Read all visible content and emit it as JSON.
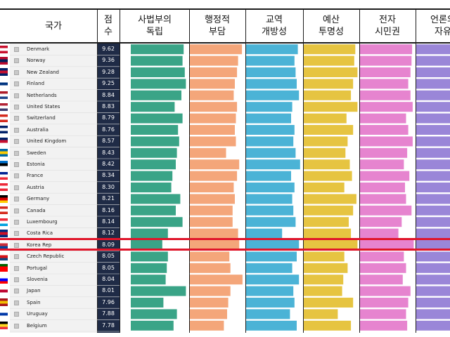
{
  "chart_data": {
    "type": "bar",
    "columns": [
      {
        "key": "country",
        "label": "국가"
      },
      {
        "key": "score",
        "label": "점\n수"
      },
      {
        "key": "judicial",
        "label": "사법부의\n독립",
        "color": "#3aa487"
      },
      {
        "key": "administrative",
        "label": "행정적\n부담",
        "color": "#f4a67a"
      },
      {
        "key": "trade",
        "label": "교역\n개방성",
        "color": "#4bb3d6"
      },
      {
        "key": "budget",
        "label": "예산\n투명성",
        "color": "#e6c441"
      },
      {
        "key": "eparticipation",
        "label": "전자\n시민권",
        "color": "#e684cf"
      },
      {
        "key": "press",
        "label": "언론의\n자유",
        "color": "#9a86d8"
      }
    ],
    "rows": [
      {
        "country": "Denmark",
        "score": "9.62",
        "judicial": 0.94,
        "administrative": 0.95,
        "trade": 0.92,
        "budget": 0.94,
        "eparticipation": 0.95,
        "press": 0.98
      },
      {
        "country": "Norway",
        "score": "9.36",
        "judicial": 0.92,
        "administrative": 0.88,
        "trade": 0.86,
        "budget": 0.92,
        "eparticipation": 0.94,
        "press": 0.99
      },
      {
        "country": "New Zealand",
        "score": "9.28",
        "judicial": 0.96,
        "administrative": 0.86,
        "trade": 0.88,
        "budget": 0.98,
        "eparticipation": 0.92,
        "press": 0.95
      },
      {
        "country": "Finland",
        "score": "9.25",
        "judicial": 0.98,
        "administrative": 0.82,
        "trade": 0.9,
        "budget": 0.9,
        "eparticipation": 0.88,
        "press": 0.98
      },
      {
        "country": "Netherlands",
        "score": "8.84",
        "judicial": 0.9,
        "administrative": 0.8,
        "trade": 0.94,
        "budget": 0.86,
        "eparticipation": 0.92,
        "press": 0.97
      },
      {
        "country": "United States",
        "score": "8.83",
        "judicial": 0.78,
        "administrative": 0.86,
        "trade": 0.82,
        "budget": 0.98,
        "eparticipation": 0.96,
        "press": 0.86
      },
      {
        "country": "Switzerland",
        "score": "8.79",
        "judicial": 0.92,
        "administrative": 0.84,
        "trade": 0.8,
        "budget": 0.78,
        "eparticipation": 0.84,
        "press": 0.94
      },
      {
        "country": "Australia",
        "score": "8.76",
        "judicial": 0.84,
        "administrative": 0.82,
        "trade": 0.86,
        "budget": 0.9,
        "eparticipation": 0.88,
        "press": 0.9
      },
      {
        "country": "United Kingdom",
        "score": "8.57",
        "judicial": 0.86,
        "administrative": 0.84,
        "trade": 0.84,
        "budget": 0.8,
        "eparticipation": 0.96,
        "press": 0.88
      },
      {
        "country": "Sweden",
        "score": "8.43",
        "judicial": 0.82,
        "administrative": 0.66,
        "trade": 0.88,
        "budget": 0.76,
        "eparticipation": 0.86,
        "press": 1.0
      },
      {
        "country": "Estonia",
        "score": "8.42",
        "judicial": 0.8,
        "administrative": 0.9,
        "trade": 0.96,
        "budget": 0.84,
        "eparticipation": 0.8,
        "press": 0.93
      },
      {
        "country": "France",
        "score": "8.34",
        "judicial": 0.74,
        "administrative": 0.86,
        "trade": 0.8,
        "budget": 0.88,
        "eparticipation": 0.9,
        "press": 0.86
      },
      {
        "country": "Austria",
        "score": "8.30",
        "judicial": 0.72,
        "administrative": 0.8,
        "trade": 0.86,
        "budget": 0.74,
        "eparticipation": 0.82,
        "press": 0.9
      },
      {
        "country": "Germany",
        "score": "8.21",
        "judicial": 0.88,
        "administrative": 0.82,
        "trade": 0.82,
        "budget": 0.96,
        "eparticipation": 0.84,
        "press": 0.92
      },
      {
        "country": "Canada",
        "score": "8.16",
        "judicial": 0.8,
        "administrative": 0.78,
        "trade": 0.84,
        "budget": 0.9,
        "eparticipation": 0.94,
        "press": 0.88
      },
      {
        "country": "Luxembourg",
        "score": "8.14",
        "judicial": 0.92,
        "administrative": 0.78,
        "trade": 0.88,
        "budget": 0.82,
        "eparticipation": 0.76,
        "press": 0.94
      },
      {
        "country": "Costa Rica",
        "score": "8.12",
        "judicial": 0.66,
        "administrative": 0.88,
        "trade": 0.64,
        "budget": 0.86,
        "eparticipation": 0.7,
        "press": 0.9
      },
      {
        "country": "Korea Rep",
        "score": "8.09",
        "judicial": 0.56,
        "administrative": 0.9,
        "trade": 0.94,
        "budget": 0.98,
        "eparticipation": 0.98,
        "press": 0.86
      },
      {
        "country": "Czech Republic",
        "score": "8.05",
        "judicial": 0.66,
        "administrative": 0.72,
        "trade": 0.9,
        "budget": 0.74,
        "eparticipation": 0.8,
        "press": 0.9
      },
      {
        "country": "Portugal",
        "score": "8.05",
        "judicial": 0.64,
        "administrative": 0.74,
        "trade": 0.82,
        "budget": 0.8,
        "eparticipation": 0.84,
        "press": 0.92
      },
      {
        "country": "Slovenia",
        "score": "8.04",
        "judicial": 0.62,
        "administrative": 0.96,
        "trade": 0.94,
        "budget": 0.72,
        "eparticipation": 0.78,
        "press": 0.88
      },
      {
        "country": "Japan",
        "score": "8.01",
        "judicial": 0.98,
        "administrative": 0.74,
        "trade": 0.84,
        "budget": 0.7,
        "eparticipation": 0.92,
        "press": 0.82
      },
      {
        "country": "Spain",
        "score": "7.96",
        "judicial": 0.58,
        "administrative": 0.7,
        "trade": 0.86,
        "budget": 0.9,
        "eparticipation": 0.88,
        "press": 0.86
      },
      {
        "country": "Uruguay",
        "score": "7.88",
        "judicial": 0.82,
        "administrative": 0.68,
        "trade": 0.78,
        "budget": 0.62,
        "eparticipation": 0.84,
        "press": 0.92
      },
      {
        "country": "Belgium",
        "score": "7.78",
        "judicial": 0.76,
        "administrative": 0.62,
        "trade": 0.9,
        "budget": 0.86,
        "eparticipation": 0.86,
        "press": 0.94
      }
    ],
    "highlighted_row": "Korea Rep",
    "highlight_color": "#e0152a",
    "flags": [
      {
        "top": "#c8102e",
        "mid": "#ffffff",
        "bot": "#c8102e"
      },
      {
        "top": "#ba0c2f",
        "mid": "#00205b",
        "bot": "#ba0c2f"
      },
      {
        "top": "#012169",
        "mid": "#c8102e",
        "bot": "#012169"
      },
      {
        "top": "#ffffff",
        "mid": "#003580",
        "bot": "#ffffff"
      },
      {
        "top": "#ae1c28",
        "mid": "#ffffff",
        "bot": "#21468b"
      },
      {
        "top": "#b22234",
        "mid": "#ffffff",
        "bot": "#3c3b6e"
      },
      {
        "top": "#d52b1e",
        "mid": "#ffffff",
        "bot": "#d52b1e"
      },
      {
        "top": "#012169",
        "mid": "#ffffff",
        "bot": "#012169"
      },
      {
        "top": "#012169",
        "mid": "#c8102e",
        "bot": "#ffffff"
      },
      {
        "top": "#006aa7",
        "mid": "#fecc00",
        "bot": "#006aa7"
      },
      {
        "top": "#0072ce",
        "mid": "#000000",
        "bot": "#ffffff"
      },
      {
        "top": "#002395",
        "mid": "#ffffff",
        "bot": "#ed2939"
      },
      {
        "top": "#ed2939",
        "mid": "#ffffff",
        "bot": "#ed2939"
      },
      {
        "top": "#000000",
        "mid": "#dd0000",
        "bot": "#ffce00"
      },
      {
        "top": "#d52b1e",
        "mid": "#ffffff",
        "bot": "#d52b1e"
      },
      {
        "top": "#ed2939",
        "mid": "#ffffff",
        "bot": "#00a1de"
      },
      {
        "top": "#002b7f",
        "mid": "#ce1126",
        "bot": "#002b7f"
      },
      {
        "top": "#ffffff",
        "mid": "#cd2e3a",
        "bot": "#0047a0"
      },
      {
        "top": "#ffffff",
        "mid": "#d7141a",
        "bot": "#11457e"
      },
      {
        "top": "#006600",
        "mid": "#ff0000",
        "bot": "#ff0000"
      },
      {
        "top": "#ffffff",
        "mid": "#0000ff",
        "bot": "#ff0000"
      },
      {
        "top": "#ffffff",
        "mid": "#bc002d",
        "bot": "#ffffff"
      },
      {
        "top": "#aa151b",
        "mid": "#f1bf00",
        "bot": "#aa151b"
      },
      {
        "top": "#ffffff",
        "mid": "#0038a8",
        "bot": "#ffffff"
      },
      {
        "top": "#000000",
        "mid": "#fdda24",
        "bot": "#ef3340"
      }
    ]
  }
}
